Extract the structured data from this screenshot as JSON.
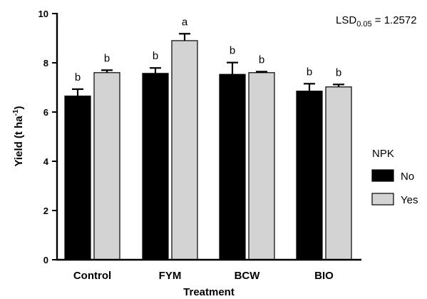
{
  "chart_data": {
    "type": "bar",
    "categories": [
      "Control",
      "FYM",
      "BCW",
      "BIO"
    ],
    "xlabel": "Treatment",
    "ylabel_main": "Yield (t ha",
    "ylabel_sup": "-1",
    "ylabel_close": ")",
    "ylim": [
      0,
      10
    ],
    "yticks": [
      "0",
      "2",
      "4",
      "6",
      "8",
      "10"
    ],
    "legend": {
      "title": "NPK",
      "position": "right"
    },
    "annotation": {
      "lsd_main": "LSD",
      "lsd_sub": "0.05",
      "lsd_value": " = 1.2572"
    },
    "series": [
      {
        "name": "No",
        "color": "#000000",
        "values": [
          6.65,
          7.57,
          7.53,
          6.85
        ],
        "errors": [
          0.28,
          0.22,
          0.48,
          0.3
        ],
        "sig": [
          "b",
          "b",
          "b",
          "b"
        ]
      },
      {
        "name": "Yes",
        "color": "#d3d3d3",
        "values": [
          7.6,
          8.9,
          7.6,
          7.02
        ],
        "errors": [
          0.1,
          0.28,
          0.04,
          0.1
        ],
        "sig": [
          "b",
          "a",
          "b",
          "b"
        ]
      }
    ]
  }
}
